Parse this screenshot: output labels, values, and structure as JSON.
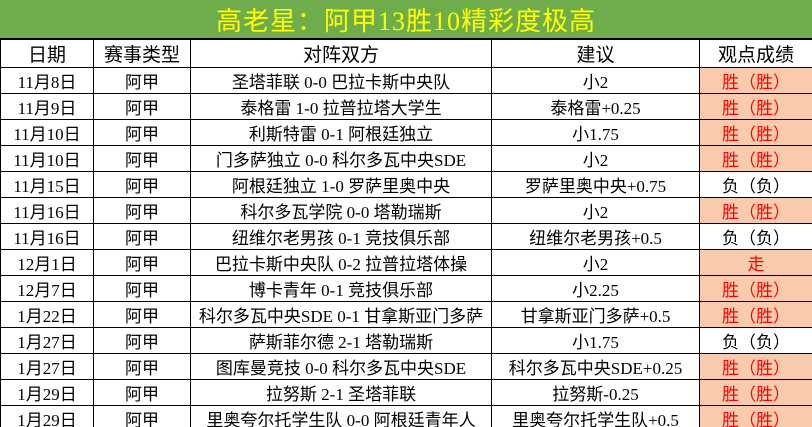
{
  "title": "高老星：阿甲13胜10精彩度极高",
  "colors": {
    "title_bg": "#6FAC4C",
    "title_text": "#FFFF00",
    "highlight_bg": "#F8CBAD",
    "highlight_text": "#FF0000",
    "border": "#000000"
  },
  "table": {
    "columns": [
      "日期",
      "赛事类型",
      "对阵双方",
      "建议",
      "观点成绩"
    ],
    "rows": [
      {
        "date": "11月8日",
        "league": "阿甲",
        "match": "圣塔菲联 0-0 巴拉卡斯中央队",
        "suggestion": "小2",
        "result": "胜（胜）",
        "highlight": true
      },
      {
        "date": "11月9日",
        "league": "阿甲",
        "match": "泰格雷 1-0 拉普拉塔大学生",
        "suggestion": "泰格雷+0.25",
        "result": "胜（胜）",
        "highlight": true
      },
      {
        "date": "11月10日",
        "league": "阿甲",
        "match": "利斯特雷 0-1 阿根廷独立",
        "suggestion": "小1.75",
        "result": "胜（胜）",
        "highlight": true
      },
      {
        "date": "11月10日",
        "league": "阿甲",
        "match": "门多萨独立 0-0 科尔多瓦中央SDE",
        "suggestion": "小2",
        "result": "胜（胜）",
        "highlight": true
      },
      {
        "date": "11月15日",
        "league": "阿甲",
        "match": "阿根廷独立 1-0 罗萨里奥中央",
        "suggestion": "罗萨里奥中央+0.75",
        "result": "负（负）",
        "highlight": false
      },
      {
        "date": "11月16日",
        "league": "阿甲",
        "match": "科尔多瓦学院 0-0 塔勒瑞斯",
        "suggestion": "小2",
        "result": "胜（胜）",
        "highlight": true
      },
      {
        "date": "11月16日",
        "league": "阿甲",
        "match": "纽维尔老男孩 0-1 竞技俱乐部",
        "suggestion": "纽维尔老男孩+0.5",
        "result": "负（负）",
        "highlight": false
      },
      {
        "date": "12月1日",
        "league": "阿甲",
        "match": "巴拉卡斯中央队 0-2 拉普拉塔体操",
        "suggestion": "小2",
        "result": "走",
        "highlight": true
      },
      {
        "date": "12月7日",
        "league": "阿甲",
        "match": "博卡青年 0-1 竞技俱乐部",
        "suggestion": "小2.25",
        "result": "胜（胜）",
        "highlight": true
      },
      {
        "date": "1月22日",
        "league": "阿甲",
        "match": "科尔多瓦中央SDE 0-1 甘拿斯亚门多萨",
        "suggestion": "甘拿斯亚门多萨+0.5",
        "result": "胜（胜）",
        "highlight": true
      },
      {
        "date": "1月27日",
        "league": "阿甲",
        "match": "萨斯菲尔德 2-1 塔勒瑞斯",
        "suggestion": "小1.75",
        "result": "负（负）",
        "highlight": false
      },
      {
        "date": "1月27日",
        "league": "阿甲",
        "match": "图库曼竞技 0-0 科尔多瓦中央SDE",
        "suggestion": "科尔多瓦中央SDE+0.25",
        "result": "胜（胜）",
        "highlight": true
      },
      {
        "date": "1月29日",
        "league": "阿甲",
        "match": "拉努斯 2-1 圣塔菲联",
        "suggestion": "拉努斯-0.25",
        "result": "胜（胜）",
        "highlight": true
      },
      {
        "date": "1月29日",
        "league": "阿甲",
        "match": "里奥夸尔托学生队 0-0 阿根廷青年人",
        "suggestion": "里奥夸尔托学生队+0.5",
        "result": "胜（胜）",
        "highlight": true
      }
    ]
  }
}
